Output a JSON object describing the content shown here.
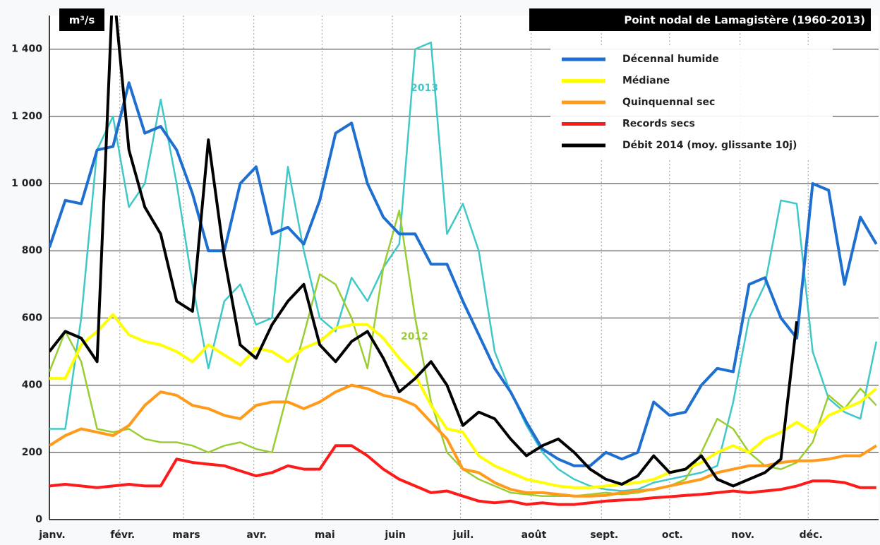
{
  "chart_data": {
    "type": "line",
    "title": "Point nodal de Lamagistère (1960-2013)",
    "y_label": "m³/s",
    "xlim": [
      0,
      365
    ],
    "xticks": [
      {
        "value": 0,
        "label": "janv."
      },
      {
        "value": 31,
        "label": "févr."
      },
      {
        "value": 59,
        "label": "mars"
      },
      {
        "value": 90,
        "label": "avr."
      },
      {
        "value": 120,
        "label": "mai"
      },
      {
        "value": 151,
        "label": "juin"
      },
      {
        "value": 181,
        "label": "juil."
      },
      {
        "value": 212,
        "label": "août"
      },
      {
        "value": 243,
        "label": "sept."
      },
      {
        "value": 273,
        "label": "oct."
      },
      {
        "value": 304,
        "label": "nov."
      },
      {
        "value": 334,
        "label": "déc."
      }
    ],
    "ylim": [
      0,
      1500
    ],
    "yticks": [
      0,
      200,
      400,
      600,
      800,
      {
        "value": 1000,
        "label": "1 000"
      },
      {
        "value": 1200,
        "label": "1 200"
      },
      {
        "value": 1400,
        "label": "1 400"
      }
    ],
    "grid": true,
    "legend": "upper right",
    "x": [
      0,
      7,
      14,
      21,
      28,
      35,
      42,
      49,
      56,
      63,
      70,
      77,
      84,
      91,
      98,
      105,
      112,
      119,
      126,
      133,
      140,
      147,
      154,
      161,
      168,
      175,
      182,
      189,
      196,
      203,
      210,
      217,
      224,
      231,
      238,
      245,
      252,
      259,
      266,
      273,
      280,
      287,
      294,
      301,
      308,
      315,
      322,
      329,
      336,
      343,
      350,
      357,
      364
    ],
    "series": [
      {
        "name": "Décennal humide",
        "color": "#1f6fd0",
        "values": [
          810,
          950,
          940,
          1100,
          1110,
          1300,
          1150,
          1170,
          1100,
          970,
          800,
          800,
          1000,
          1050,
          850,
          870,
          820,
          950,
          1150,
          1180,
          1000,
          900,
          850,
          850,
          760,
          760,
          650,
          550,
          450,
          380,
          290,
          210,
          180,
          160,
          160,
          200,
          180,
          200,
          350,
          310,
          320,
          400,
          450,
          440,
          700,
          720,
          600,
          540,
          1000,
          980,
          700,
          900,
          820
        ]
      },
      {
        "name": "Médiane",
        "color": "#ffff00",
        "values": [
          420,
          420,
          520,
          560,
          610,
          550,
          530,
          520,
          500,
          470,
          520,
          490,
          460,
          510,
          500,
          470,
          510,
          530,
          570,
          580,
          580,
          540,
          480,
          430,
          340,
          270,
          260,
          190,
          160,
          140,
          120,
          110,
          100,
          95,
          95,
          100,
          105,
          110,
          120,
          140,
          150,
          170,
          200,
          220,
          200,
          240,
          260,
          290,
          260,
          310,
          330,
          350,
          390
        ]
      },
      {
        "name": "Quinquennal sec",
        "color": "#ff9a1a",
        "values": [
          220,
          250,
          270,
          260,
          250,
          280,
          340,
          380,
          370,
          340,
          330,
          310,
          300,
          340,
          350,
          350,
          330,
          350,
          380,
          400,
          390,
          370,
          360,
          340,
          290,
          240,
          150,
          140,
          110,
          90,
          80,
          80,
          75,
          70,
          70,
          72,
          80,
          85,
          90,
          100,
          110,
          120,
          140,
          150,
          160,
          160,
          170,
          175,
          175,
          180,
          190,
          190,
          220
        ]
      },
      {
        "name": "Records secs",
        "color": "#ff1a1a",
        "values": [
          100,
          105,
          100,
          95,
          100,
          105,
          100,
          100,
          180,
          170,
          165,
          160,
          145,
          130,
          140,
          160,
          150,
          150,
          220,
          220,
          190,
          150,
          120,
          100,
          80,
          85,
          70,
          55,
          50,
          55,
          45,
          50,
          45,
          45,
          50,
          55,
          58,
          60,
          65,
          68,
          72,
          75,
          80,
          85,
          80,
          85,
          90,
          100,
          115,
          115,
          110,
          95,
          95
        ]
      },
      {
        "name": "Débit 2014 (moy. glissante 10j)",
        "color": "#000000",
        "values": [
          500,
          560,
          540,
          470,
          1600,
          1100,
          930,
          850,
          650,
          620,
          1130,
          780,
          520,
          480,
          580,
          650,
          700,
          520,
          470,
          530,
          560,
          480,
          380,
          420,
          470,
          400,
          280,
          320,
          300,
          240,
          190,
          220,
          240,
          200,
          150,
          120,
          105,
          130,
          190,
          140,
          150,
          190,
          120,
          100,
          120,
          140,
          180,
          590,
          null,
          null,
          null,
          null,
          null
        ]
      }
    ],
    "year_series": [
      {
        "name": "2013",
        "color": "#40c8c8",
        "values": [
          270,
          270,
          600,
          1100,
          1200,
          930,
          1000,
          1250,
          1000,
          700,
          450,
          650,
          700,
          580,
          600,
          1050,
          800,
          600,
          560,
          720,
          650,
          750,
          820,
          1400,
          1420,
          850,
          940,
          800,
          500,
          380,
          280,
          200,
          150,
          120,
          100,
          90,
          85,
          90,
          110,
          120,
          130,
          140,
          160,
          350,
          600,
          700,
          950,
          940,
          500,
          360,
          320,
          300,
          530
        ]
      },
      {
        "name": "2012",
        "color": "#9acd32",
        "values": [
          440,
          560,
          470,
          270,
          260,
          270,
          240,
          230,
          230,
          220,
          200,
          220,
          230,
          210,
          200,
          380,
          550,
          730,
          700,
          600,
          450,
          750,
          920,
          600,
          350,
          200,
          150,
          120,
          100,
          80,
          75,
          70,
          70,
          70,
          75,
          80,
          75,
          80,
          90,
          100,
          120,
          200,
          300,
          270,
          200,
          160,
          150,
          170,
          230,
          370,
          330,
          390,
          340
        ]
      }
    ]
  }
}
